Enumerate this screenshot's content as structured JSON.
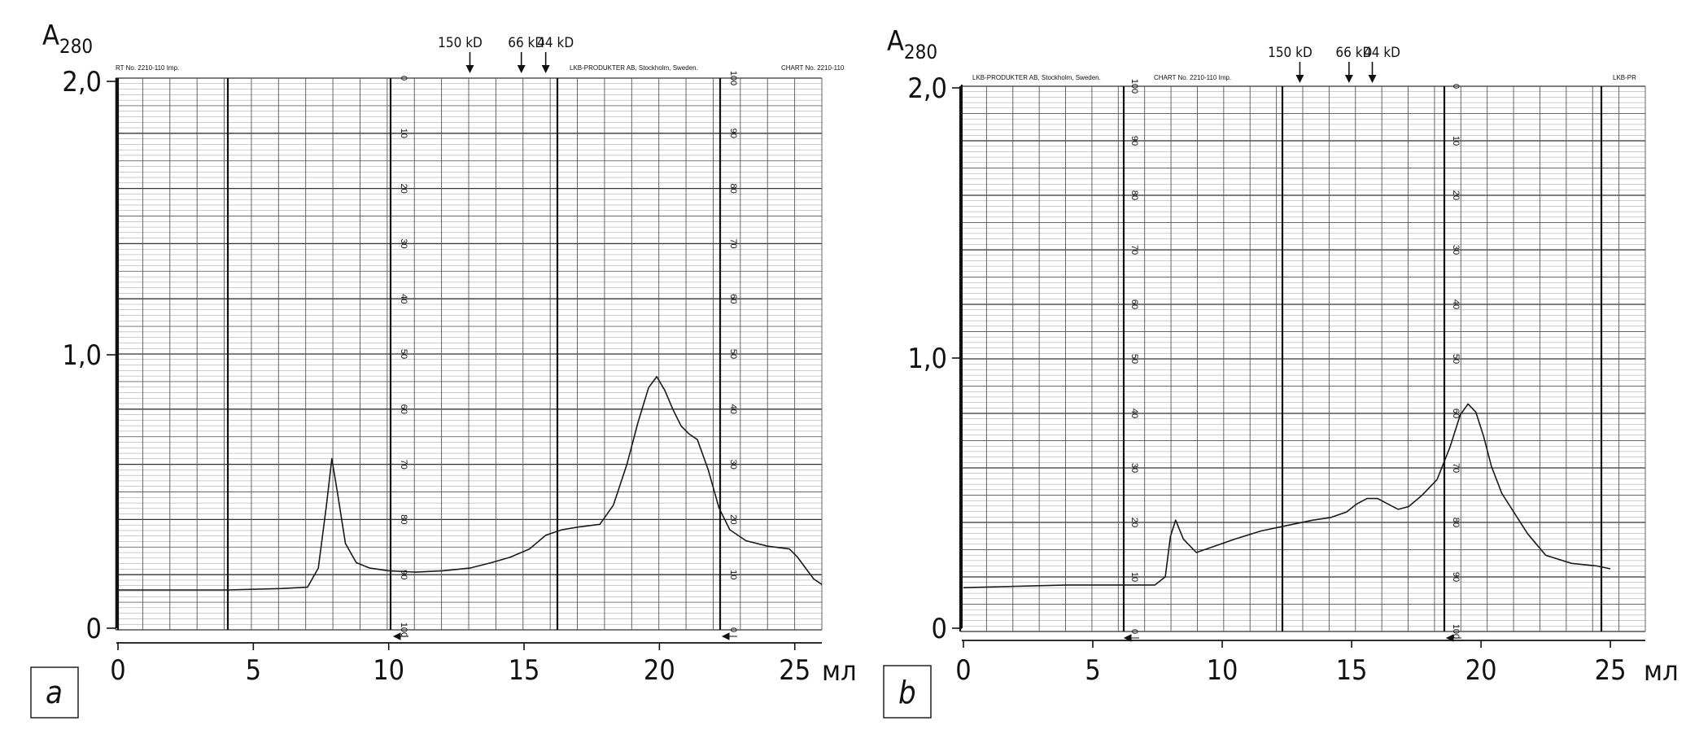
{
  "ylabel": {
    "main": "A",
    "sub": "280"
  },
  "xunit": "мл",
  "yticks": [
    "0",
    "1,0",
    "2,0"
  ],
  "xticks": [
    "0",
    "5",
    "10",
    "15",
    "20",
    "25"
  ],
  "markers": [
    "150 kD",
    "66 kD",
    "44 kD"
  ],
  "chart_data": [
    {
      "panel": "a",
      "type": "line",
      "xlabel": "мл",
      "ylabel": "A280",
      "xlim": [
        0,
        26
      ],
      "ylim": [
        0,
        2
      ],
      "x_ticks": [
        0,
        5,
        10,
        15,
        20,
        25
      ],
      "y_ticks": [
        0,
        1.0,
        2.0
      ],
      "grid": true,
      "chart_paper_text": [
        "RT No. 2210-110 Imp.",
        "LKB-PRODUKTER AB, Stockholm, Sweden.",
        "CHART No. 2210-110"
      ],
      "markers": [
        {
          "label": "150 kD",
          "x": 13.0
        },
        {
          "label": "66 kD",
          "x": 14.9
        },
        {
          "label": "44 kD",
          "x": 15.8
        }
      ],
      "series": [
        {
          "x": [
            0,
            2,
            4,
            6,
            7.0,
            7.4,
            7.7,
            7.9,
            8.1,
            8.4,
            8.8,
            9.3,
            10,
            11,
            12,
            13,
            13.8,
            14.5,
            15.2,
            15.8,
            16.4,
            17.0,
            17.8,
            18.3,
            18.8,
            19.2,
            19.6,
            19.9,
            20.2,
            20.5,
            20.8,
            21.1,
            21.4,
            21.8,
            22.2,
            22.6,
            23.2,
            24.0,
            24.8,
            25.1,
            25.4,
            25.7,
            26.0
          ],
          "y": [
            0.14,
            0.14,
            0.14,
            0.145,
            0.15,
            0.22,
            0.45,
            0.62,
            0.5,
            0.31,
            0.24,
            0.22,
            0.21,
            0.205,
            0.21,
            0.22,
            0.24,
            0.26,
            0.29,
            0.34,
            0.36,
            0.37,
            0.38,
            0.45,
            0.6,
            0.75,
            0.88,
            0.92,
            0.87,
            0.8,
            0.74,
            0.71,
            0.69,
            0.58,
            0.44,
            0.36,
            0.32,
            0.3,
            0.29,
            0.26,
            0.22,
            0.18,
            0.16
          ]
        }
      ]
    },
    {
      "panel": "b",
      "type": "line",
      "xlabel": "мл",
      "ylabel": "A280",
      "xlim": [
        0,
        25.5
      ],
      "ylim": [
        0,
        2
      ],
      "x_ticks": [
        0,
        5,
        10,
        15,
        20,
        25
      ],
      "y_ticks": [
        0,
        1.0,
        2.0
      ],
      "grid": true,
      "chart_paper_text": [
        "LKB-PRODUKTER AB, Stockholm, Sweden.",
        "CHART No. 2210-110 Imp.",
        "LKB-PR"
      ],
      "markers": [
        {
          "label": "150 kD",
          "x": 13.0
        },
        {
          "label": "66 kD",
          "x": 14.9
        },
        {
          "label": "44 kD",
          "x": 15.8
        }
      ],
      "series": [
        {
          "x": [
            0,
            2,
            4,
            6,
            7.4,
            7.8,
            8.0,
            8.2,
            8.5,
            9.0,
            9.6,
            10.5,
            11.5,
            12.5,
            13.5,
            14.2,
            14.8,
            15.2,
            15.6,
            16.0,
            16.4,
            16.8,
            17.2,
            17.7,
            18.3,
            18.8,
            19.2,
            19.5,
            19.8,
            20.1,
            20.4,
            20.8,
            21.2,
            21.8,
            22.5,
            23.5,
            24.5,
            25.0
          ],
          "y": [
            0.15,
            0.155,
            0.16,
            0.16,
            0.16,
            0.19,
            0.34,
            0.4,
            0.33,
            0.28,
            0.3,
            0.33,
            0.36,
            0.38,
            0.4,
            0.41,
            0.43,
            0.46,
            0.48,
            0.48,
            0.46,
            0.44,
            0.45,
            0.49,
            0.55,
            0.67,
            0.79,
            0.83,
            0.8,
            0.71,
            0.6,
            0.5,
            0.44,
            0.35,
            0.27,
            0.24,
            0.23,
            0.22
          ]
        }
      ]
    }
  ]
}
